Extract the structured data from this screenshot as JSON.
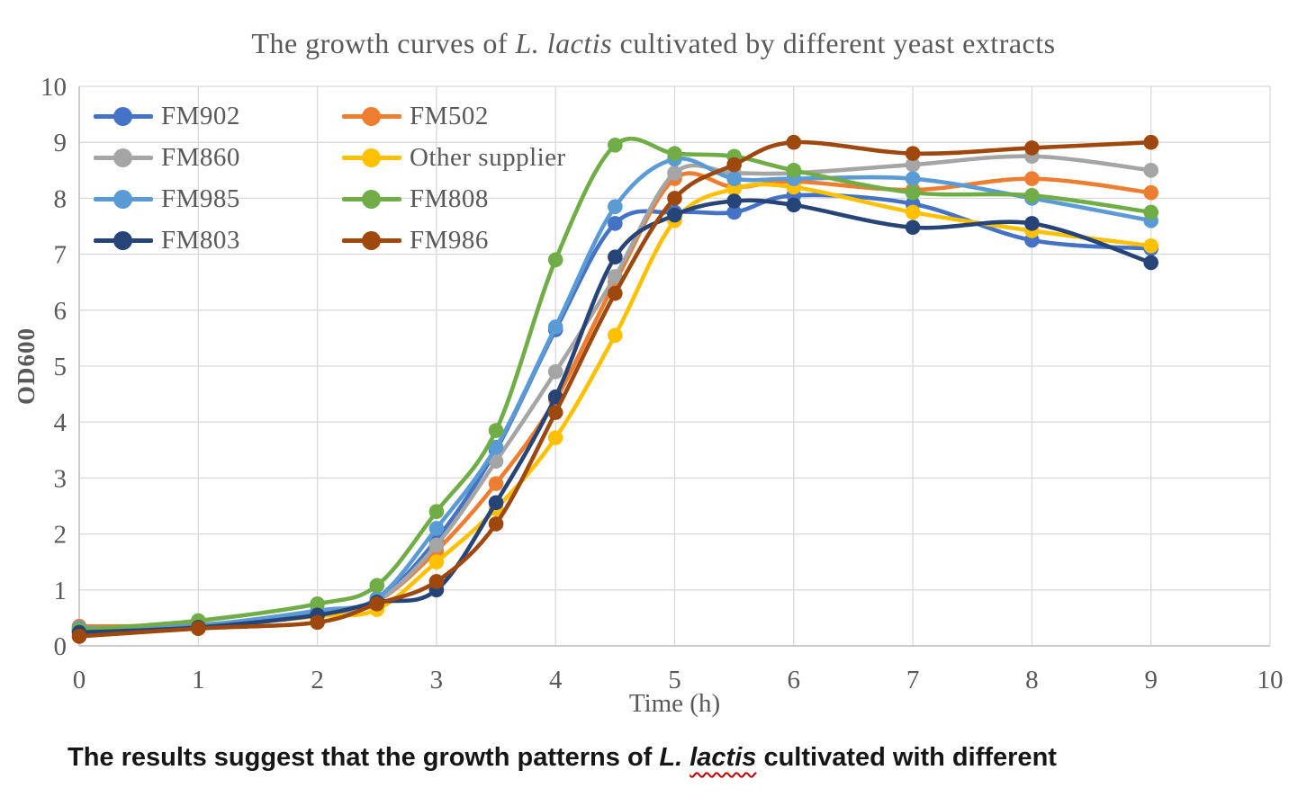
{
  "title": {
    "prefix": "The growth curves of ",
    "species": "L. lactis",
    "suffix": " cultivated by different yeast extracts"
  },
  "caption": {
    "prefix": "The results suggest that the growth patterns of ",
    "species_genus": "L. ",
    "species_misspelled": "lactis",
    "suffix": " cultivated with different"
  },
  "styles": {
    "text_color": "#595959",
    "gridline_color": "#D9D9D9",
    "axis_color": "#BFBFBF",
    "caption_color": "#161616",
    "squiggle_color": "#C00000"
  },
  "chart_data": {
    "type": "line",
    "title": "The growth curves of L. lactis cultivated by different yeast extracts",
    "xlabel": "Time (h)",
    "ylabel": "OD600",
    "xlim": [
      0,
      10
    ],
    "ylim": [
      0,
      10
    ],
    "x_ticks": [
      0,
      1,
      2,
      3,
      4,
      5,
      6,
      7,
      8,
      9,
      10
    ],
    "y_ticks": [
      0,
      1,
      2,
      3,
      4,
      5,
      6,
      7,
      8,
      9,
      10
    ],
    "grid": true,
    "legend_position": "top-left",
    "marker": "circle",
    "smooth_lines": true,
    "x": [
      0,
      1,
      2,
      2.5,
      3,
      3.5,
      4,
      4.5,
      5,
      5.5,
      6,
      7,
      8,
      9
    ],
    "series": [
      {
        "name": "FM902",
        "color": "#4472C4",
        "values": [
          0.28,
          0.36,
          0.6,
          0.82,
          1.9,
          3.5,
          5.65,
          7.55,
          7.75,
          7.75,
          8.05,
          7.9,
          7.25,
          7.1
        ]
      },
      {
        "name": "FM502",
        "color": "#ED7D31",
        "values": [
          0.35,
          0.38,
          0.58,
          0.8,
          1.7,
          2.9,
          4.4,
          6.5,
          8.35,
          8.2,
          8.3,
          8.15,
          8.35,
          8.1
        ]
      },
      {
        "name": "FM860",
        "color": "#A5A5A5",
        "values": [
          0.27,
          0.35,
          0.56,
          0.8,
          1.8,
          3.3,
          4.9,
          6.6,
          8.45,
          8.45,
          8.45,
          8.6,
          8.75,
          8.5
        ]
      },
      {
        "name": "Other supplier",
        "color": "#FFC000",
        "values": [
          0.26,
          0.34,
          0.53,
          0.65,
          1.5,
          2.45,
          3.72,
          5.55,
          7.6,
          8.17,
          8.2,
          7.75,
          7.42,
          7.15
        ]
      },
      {
        "name": "FM985",
        "color": "#5B9BD5",
        "values": [
          0.32,
          0.37,
          0.63,
          0.85,
          2.1,
          3.55,
          5.7,
          7.85,
          8.7,
          8.35,
          8.35,
          8.35,
          8.0,
          7.6
        ]
      },
      {
        "name": "FM808",
        "color": "#70AD47",
        "values": [
          0.29,
          0.45,
          0.75,
          1.08,
          2.4,
          3.85,
          6.9,
          8.95,
          8.8,
          8.75,
          8.5,
          8.1,
          8.05,
          7.75
        ]
      },
      {
        "name": "FM803",
        "color": "#264478",
        "values": [
          0.24,
          0.33,
          0.55,
          0.78,
          1.0,
          2.56,
          4.45,
          6.95,
          7.7,
          7.95,
          7.88,
          7.48,
          7.55,
          6.85
        ]
      },
      {
        "name": "FM986",
        "color": "#9E480E",
        "values": [
          0.17,
          0.31,
          0.42,
          0.75,
          1.15,
          2.18,
          4.17,
          6.3,
          8.0,
          8.6,
          9.0,
          8.8,
          8.9,
          9.0
        ]
      }
    ],
    "legend_order": [
      "FM902",
      "FM502",
      "FM860",
      "Other supplier",
      "FM985",
      "FM808",
      "FM803",
      "FM986"
    ]
  }
}
